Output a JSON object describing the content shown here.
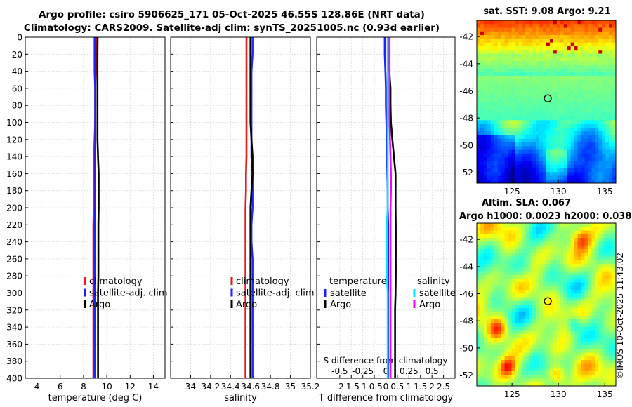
{
  "header": {
    "title_line1": "Argo profile: csiro 5906625_171 05-Oct-2025 46.55S 128.86E (NRT data)",
    "title_line2": "Climatology: CARS2009. Satellite-adj clim: synTS_20251005.nc (0.93d earlier)"
  },
  "maps": {
    "sst_title": "sat. SST: 9.08 Argo: 9.21",
    "sla_title_line1": "Altim. SLA: 0.067",
    "sla_title_line2": "Argo h1000: 0.0023 h2000: 0.038",
    "lat_ticks": [
      "-42",
      "-44",
      "-46",
      "-48",
      "-50",
      "-52"
    ],
    "lon_ticks": [
      "125",
      "130",
      "135"
    ],
    "float_marker": {
      "lon": 128.86,
      "lat": -46.55
    }
  },
  "watermark": "©IMOS 10-Oct-2025 11:43:02",
  "colors": {
    "climatology": "#e31a1c",
    "satellite": "#1f1fff",
    "argo": "#000000",
    "satellite_salinity": "#00e5ff",
    "argo_salinity": "#ff00ff"
  },
  "chart_data": [
    {
      "type": "line",
      "name": "temperature",
      "xlabel": "temperature (deg C)",
      "ylabel": "pressure (dbar)",
      "xlim": [
        3,
        15
      ],
      "ylim": [
        400,
        0
      ],
      "xticks": [
        "4",
        "6",
        "8",
        "10",
        "12",
        "14"
      ],
      "yticks": [
        "0",
        "20",
        "40",
        "60",
        "80",
        "100",
        "120",
        "140",
        "160",
        "180",
        "200",
        "220",
        "240",
        "260",
        "280",
        "300",
        "320",
        "340",
        "360",
        "380",
        "400"
      ],
      "grid": true,
      "legend": {
        "placement": "lower-middle",
        "entries": [
          "climatology",
          "satellite-adj. clim",
          "Argo"
        ]
      },
      "series": [
        {
          "name": "climatology",
          "color_key": "climatology",
          "depth": [
            0,
            20,
            40,
            60,
            80,
            100,
            120,
            140,
            160,
            180,
            200,
            220,
            240,
            260,
            280,
            300,
            320,
            340,
            360,
            380,
            400
          ],
          "values": [
            9.1,
            9.1,
            9.05,
            9.0,
            9.0,
            9.0,
            8.95,
            8.9,
            8.9,
            8.9,
            8.88,
            8.85,
            8.85,
            8.85,
            8.85,
            8.85,
            8.85,
            8.85,
            8.85,
            8.85,
            8.85
          ]
        },
        {
          "name": "satellite-adj. clim",
          "color_key": "satellite",
          "depth": [
            0,
            20,
            40,
            60,
            80,
            100,
            120,
            140,
            160,
            180,
            200,
            220,
            240,
            260,
            280,
            300,
            320,
            340,
            360,
            380,
            400
          ],
          "values": [
            8.95,
            8.95,
            8.95,
            9.0,
            9.0,
            9.0,
            9.0,
            9.0,
            9.0,
            9.0,
            9.0,
            8.95,
            8.95,
            8.95,
            8.95,
            8.95,
            8.95,
            8.95,
            8.95,
            8.95,
            8.95
          ]
        },
        {
          "name": "Argo",
          "color_key": "argo",
          "depth": [
            0,
            20,
            40,
            60,
            80,
            100,
            120,
            140,
            160,
            180,
            200,
            220,
            240,
            260,
            280,
            300,
            320,
            340,
            360,
            380,
            400
          ],
          "values": [
            9.21,
            9.2,
            9.2,
            9.2,
            9.2,
            9.2,
            9.2,
            9.25,
            9.3,
            9.3,
            9.3,
            9.28,
            9.28,
            9.28,
            9.28,
            9.25,
            9.25,
            9.25,
            9.25,
            9.25,
            9.25
          ]
        }
      ]
    },
    {
      "type": "line",
      "name": "salinity",
      "xlabel": "salinity",
      "ylabel": "",
      "xlim": [
        33.8,
        35.2
      ],
      "ylim": [
        400,
        0
      ],
      "xticks": [
        "34",
        "34.2",
        "34.4",
        "34.6",
        "34.8",
        "35",
        "35.2"
      ],
      "grid": true,
      "legend": {
        "placement": "lower-middle",
        "entries": [
          "climatology",
          "satellite-adj. clim",
          "Argo"
        ]
      },
      "series": [
        {
          "name": "climatology",
          "color_key": "climatology",
          "depth": [
            0,
            20,
            40,
            60,
            80,
            100,
            120,
            140,
            160,
            180,
            200,
            220,
            240,
            260,
            280,
            300,
            320,
            340,
            360,
            380,
            400
          ],
          "values": [
            34.56,
            34.56,
            34.56,
            34.56,
            34.56,
            34.56,
            34.56,
            34.56,
            34.555,
            34.555,
            34.55,
            34.55,
            34.55,
            34.55,
            34.55,
            34.55,
            34.55,
            34.55,
            34.55,
            34.55,
            34.55
          ]
        },
        {
          "name": "satellite-adj. clim",
          "color_key": "satellite",
          "depth": [
            0,
            20,
            40,
            60,
            80,
            100,
            120,
            140,
            160,
            180,
            200,
            220,
            240,
            260,
            280,
            300,
            320,
            340,
            360,
            380,
            400
          ],
          "values": [
            34.62,
            34.62,
            34.61,
            34.61,
            34.61,
            34.61,
            34.61,
            34.61,
            34.62,
            34.62,
            34.62,
            34.61,
            34.61,
            34.62,
            34.62,
            34.62,
            34.62,
            34.62,
            34.62,
            34.62,
            34.62
          ]
        },
        {
          "name": "Argo",
          "color_key": "argo",
          "depth": [
            0,
            20,
            40,
            60,
            80,
            100,
            120,
            140,
            160,
            180,
            200,
            220,
            240,
            260,
            280,
            300,
            320,
            340,
            360,
            380,
            400
          ],
          "values": [
            34.6,
            34.6,
            34.6,
            34.6,
            34.6,
            34.6,
            34.61,
            34.62,
            34.62,
            34.61,
            34.6,
            34.6,
            34.6,
            34.6,
            34.6,
            34.6,
            34.6,
            34.6,
            34.6,
            34.6,
            34.6
          ]
        }
      ]
    },
    {
      "type": "line",
      "name": "difference-from-climatology",
      "xlabel": "T difference from climatology",
      "x2label": "S difference from climatology",
      "ylabel": "",
      "xlim": [
        -3,
        3
      ],
      "x2lim": [
        -0.75,
        0.75
      ],
      "ylim": [
        400,
        0
      ],
      "xticks": [
        "-2",
        "-1.5",
        "-1",
        "-0.5",
        "0",
        "0.5",
        "1",
        "1.5",
        "2",
        "2.5"
      ],
      "x2ticks": [
        "-0.5",
        "-0.25",
        "0",
        "0.25",
        "0.5"
      ],
      "grid": true,
      "legend": {
        "placement": "lower",
        "temperature_heading": "temperature",
        "salinity_heading": "salinity",
        "entries": [
          "satellite",
          "Argo",
          "satellite",
          "Argo"
        ]
      },
      "series": [
        {
          "name": "temperature satellite",
          "color_key": "satellite",
          "axis": "T",
          "depth": [
            0,
            20,
            40,
            60,
            80,
            100,
            120,
            140,
            160,
            180,
            200,
            220,
            240,
            260,
            280,
            300,
            320,
            340,
            360,
            380,
            400
          ],
          "values": [
            -0.05,
            -0.05,
            -0.02,
            0.0,
            0.0,
            0.02,
            0.03,
            0.05,
            0.06,
            0.08,
            0.08,
            0.1,
            0.1,
            0.1,
            0.1,
            0.1,
            0.1,
            0.1,
            0.1,
            0.1,
            0.1
          ]
        },
        {
          "name": "temperature Argo",
          "color_key": "argo",
          "axis": "T",
          "depth": [
            0,
            20,
            40,
            60,
            80,
            100,
            120,
            140,
            160,
            180,
            200,
            220,
            240,
            260,
            280,
            300,
            320,
            340,
            360,
            380,
            400
          ],
          "values": [
            0.12,
            0.12,
            0.15,
            0.2,
            0.2,
            0.22,
            0.28,
            0.35,
            0.42,
            0.42,
            0.42,
            0.43,
            0.43,
            0.43,
            0.43,
            0.42,
            0.4,
            0.4,
            0.4,
            0.4,
            0.4
          ]
        },
        {
          "name": "salinity satellite",
          "color_key": "satellite_salinity",
          "axis": "S",
          "depth": [
            0,
            20,
            40,
            60,
            80,
            100,
            120,
            140,
            160,
            180,
            200,
            220,
            240,
            260,
            280,
            300,
            320,
            340,
            360,
            380,
            400
          ],
          "values": [
            0.02,
            0.02,
            0.02,
            0.02,
            0.02,
            0.02,
            0.02,
            0.02,
            0.02,
            0.02,
            0.02,
            0.01,
            0.01,
            0.01,
            0.01,
            0.02,
            0.02,
            0.02,
            0.02,
            0.02,
            0.02
          ]
        },
        {
          "name": "salinity Argo",
          "color_key": "argo_salinity",
          "axis": "S",
          "depth": [
            0,
            20,
            40,
            60,
            80,
            100,
            120,
            140,
            160,
            180,
            200,
            220,
            240,
            260,
            280,
            300,
            320,
            340,
            360,
            380,
            400
          ],
          "values": [
            0.04,
            0.04,
            0.04,
            0.04,
            0.04,
            0.04,
            0.045,
            0.05,
            0.055,
            0.055,
            0.05,
            0.05,
            0.05,
            0.05,
            0.05,
            0.05,
            0.05,
            0.05,
            0.05,
            0.05,
            0.05
          ]
        }
      ]
    }
  ]
}
